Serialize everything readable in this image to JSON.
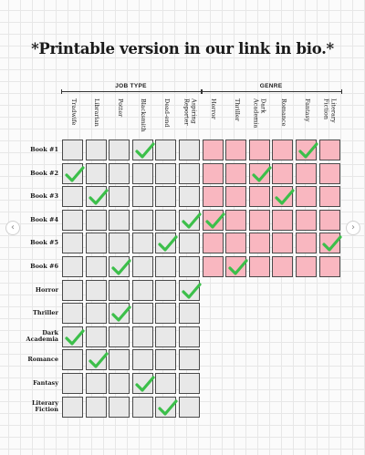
{
  "title": "*Printable version in our link in bio.*",
  "groups": [
    {
      "label": "JOB TYPE"
    },
    {
      "label": "GENRE"
    }
  ],
  "columns": [
    {
      "label": "Tradwife",
      "group": 0
    },
    {
      "label": "Librarian",
      "group": 0
    },
    {
      "label": "Potter",
      "group": 0
    },
    {
      "label": "Blacksmith",
      "group": 0
    },
    {
      "label": "Dead-end",
      "group": 0
    },
    {
      "label": "Aspiring\nReporter",
      "group": 0
    },
    {
      "label": "Horror",
      "group": 1
    },
    {
      "label": "Thriller",
      "group": 1
    },
    {
      "label": "Dark\nAcademia",
      "group": 1
    },
    {
      "label": "Romance",
      "group": 1
    },
    {
      "label": "Fantasy",
      "group": 1
    },
    {
      "label": "Literary\nFiction",
      "group": 1
    }
  ],
  "rows": [
    {
      "label": "Book #1",
      "checks": [
        3,
        10
      ]
    },
    {
      "label": "Book #2",
      "checks": [
        0,
        8
      ]
    },
    {
      "label": "Book #3",
      "checks": [
        1,
        9
      ]
    },
    {
      "label": "Book #4",
      "checks": [
        5,
        6
      ]
    },
    {
      "label": "Book #5",
      "checks": [
        4,
        11
      ]
    },
    {
      "label": "Book #6",
      "checks": [
        2,
        7
      ]
    },
    {
      "label": "Horror",
      "checks": [
        5
      ]
    },
    {
      "label": "Thriller",
      "checks": [
        2
      ]
    },
    {
      "label": "Dark\nAcademia",
      "checks": [
        0
      ]
    },
    {
      "label": "Romance",
      "checks": [
        1
      ]
    },
    {
      "label": "Fantasy",
      "checks": [
        3
      ]
    },
    {
      "label": "Literary\nFiction",
      "checks": [
        4
      ]
    }
  ],
  "colors": {
    "jobtype_cell": "#e8e8e8",
    "genre_cell": "#f9b7c0",
    "check": "#3cbf4a"
  },
  "nav": {
    "prev_icon": "chevron-left-icon",
    "next_icon": "chevron-right-icon",
    "prev": "‹",
    "next": "›"
  }
}
